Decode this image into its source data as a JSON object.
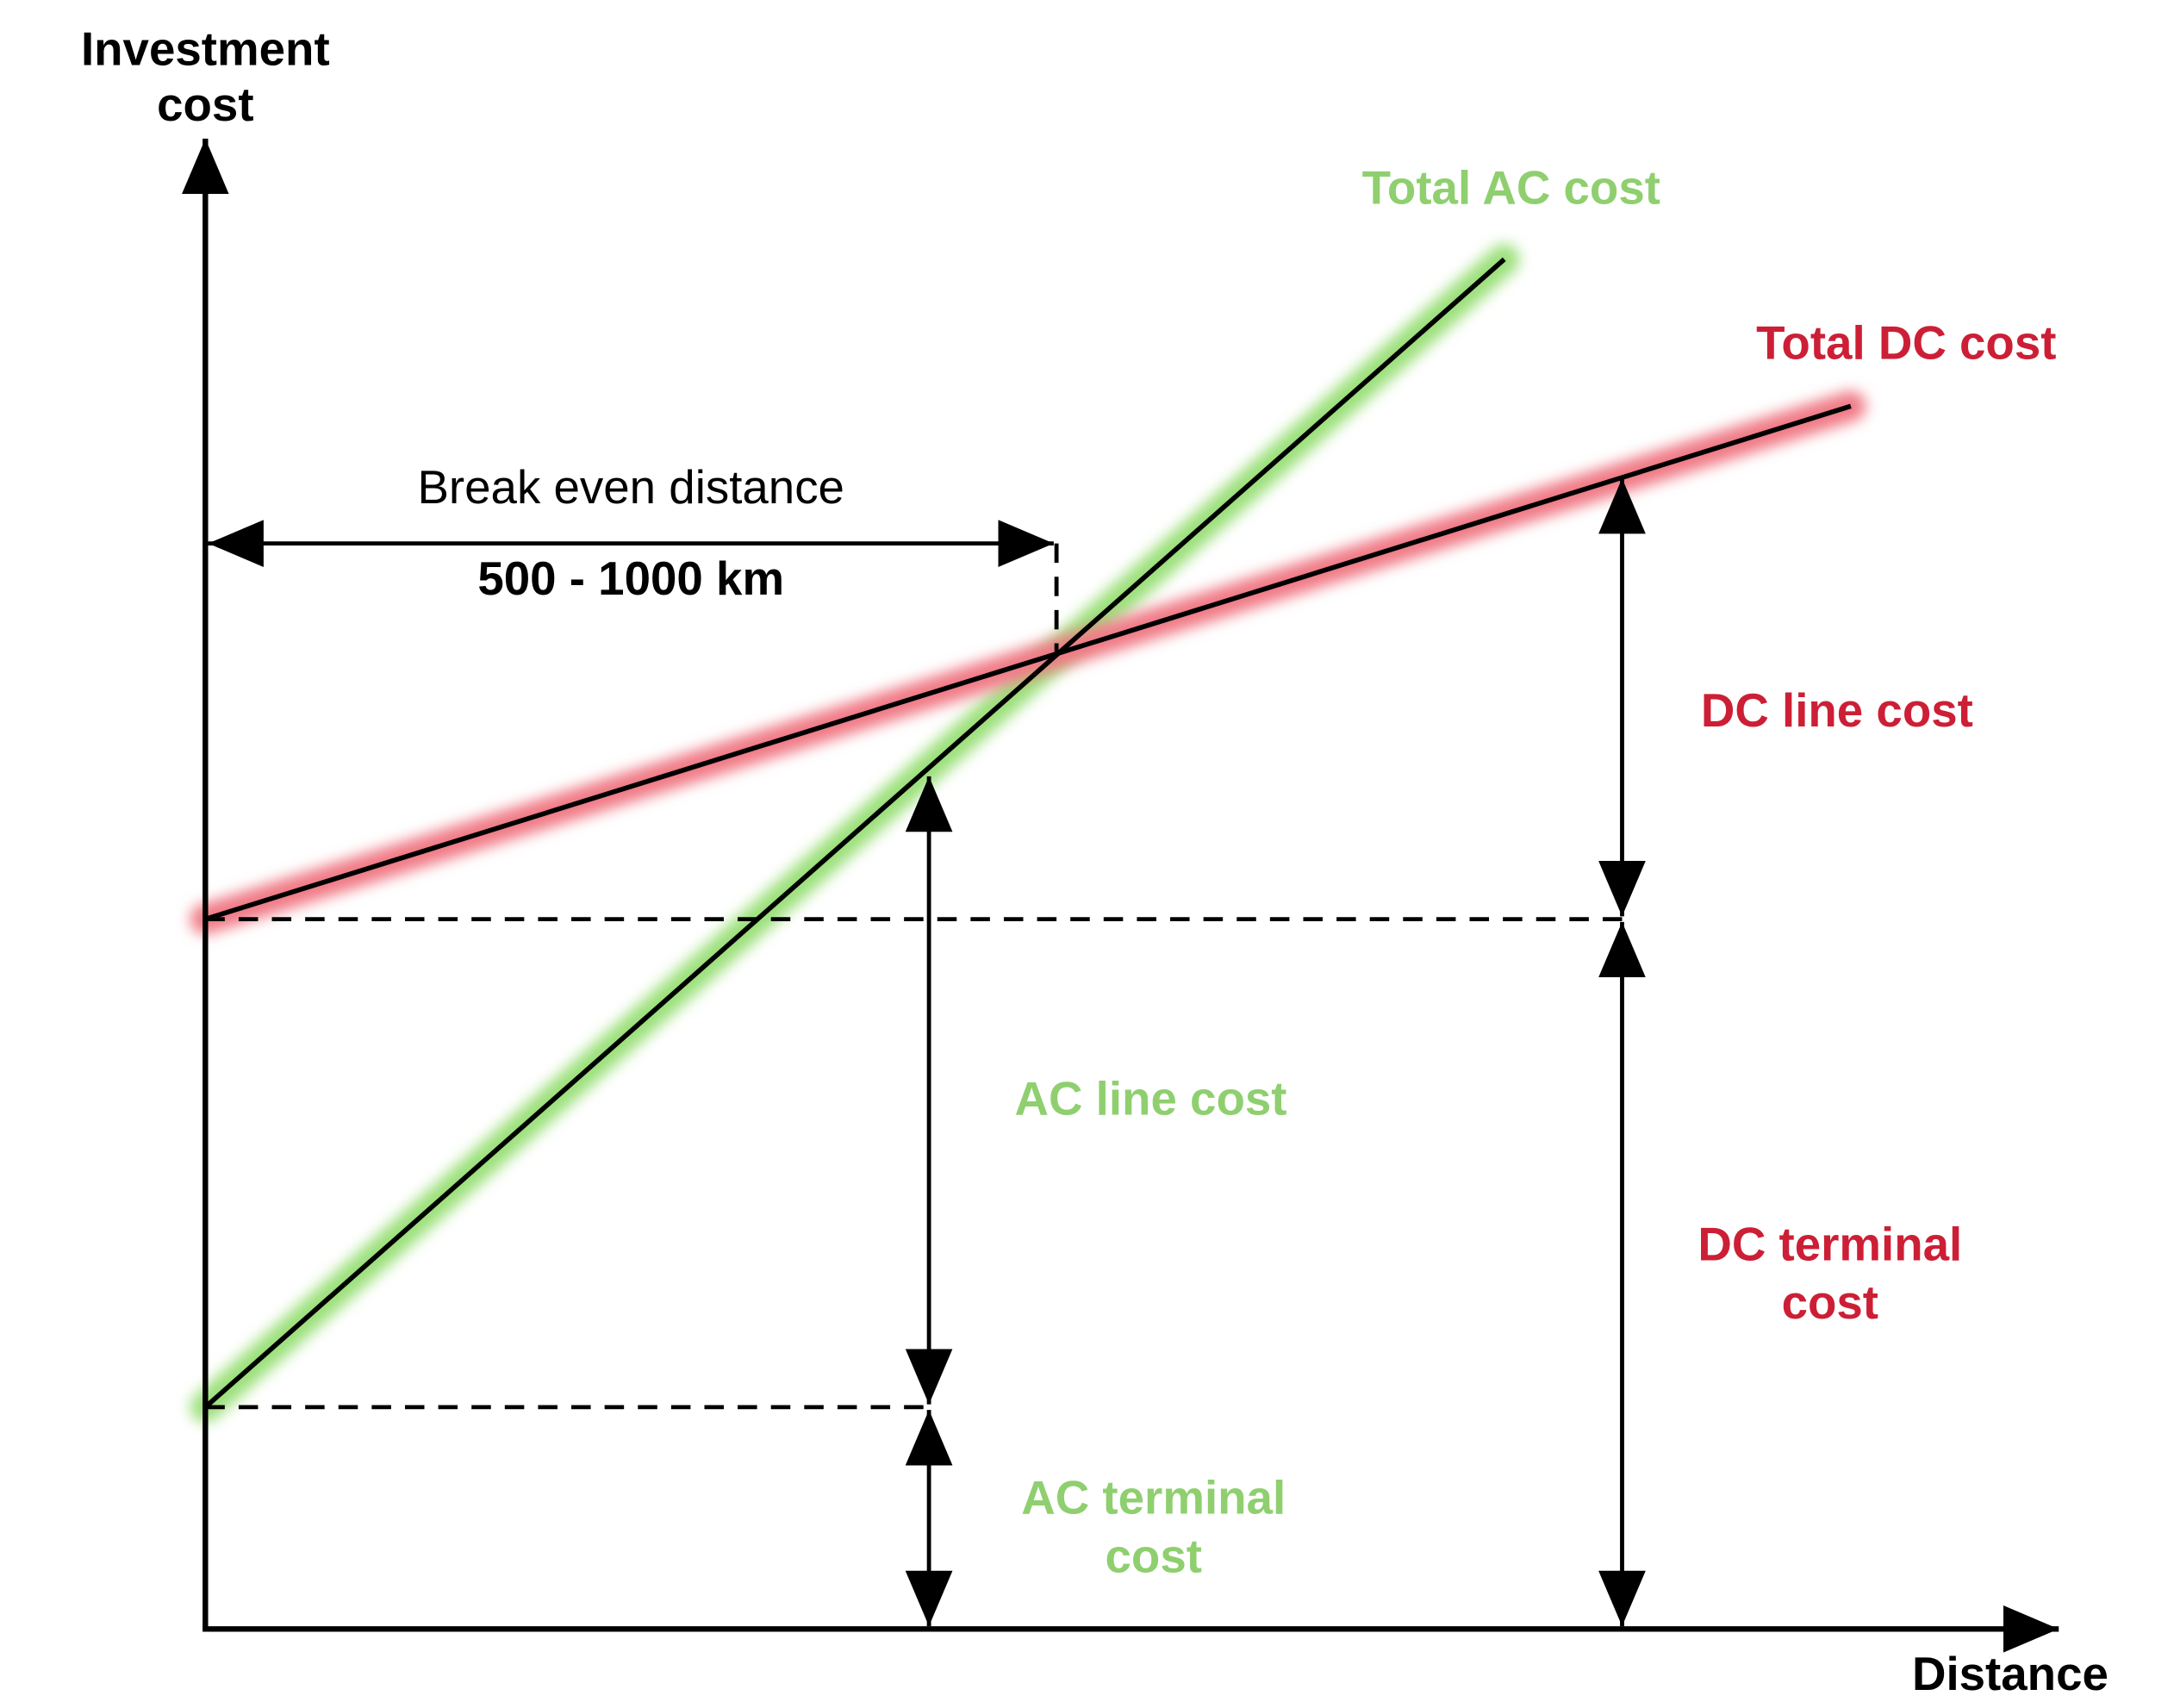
{
  "y_axis_label": [
    "Investment",
    "cost"
  ],
  "x_axis_label": "Distance",
  "break_even": {
    "label": "Break even distance",
    "range": "500 - 1000 km"
  },
  "ac": {
    "total": "Total AC cost",
    "line_cost": "AC line cost",
    "terminal_cost": [
      "AC terminal",
      "cost"
    ]
  },
  "dc": {
    "total": "Total DC cost",
    "line_cost": "DC line cost",
    "terminal_cost": [
      "DC terminal",
      "cost"
    ]
  }
}
